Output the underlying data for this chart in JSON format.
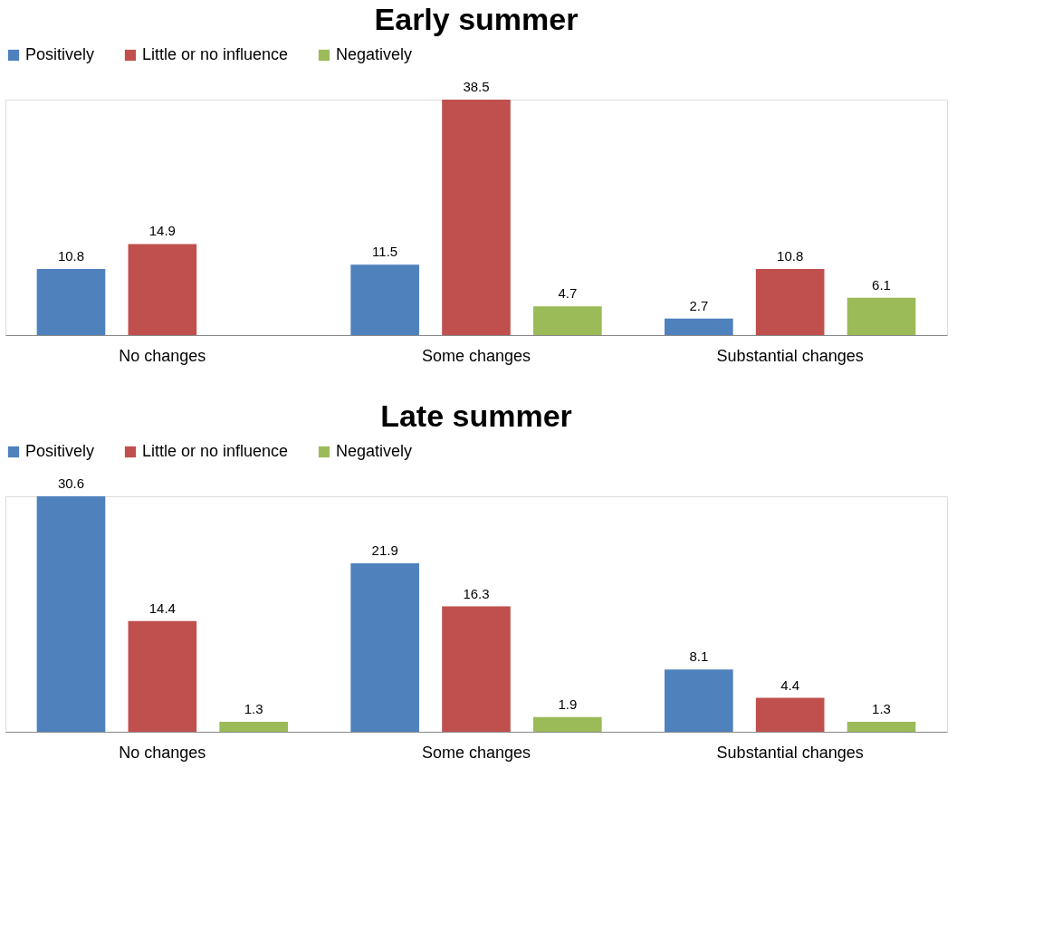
{
  "chart_data": [
    {
      "type": "bar",
      "title": "Early summer",
      "categories": [
        "No changes",
        "Some changes",
        "Substantial changes"
      ],
      "data_labels": true,
      "legend": "top",
      "series": [
        {
          "name": "Positively",
          "color": "#4f81bd",
          "values": [
            10.8,
            11.5,
            2.7
          ]
        },
        {
          "name": "Little or no influence",
          "color": "#c0504d",
          "values": [
            14.9,
            38.5,
            10.8
          ]
        },
        {
          "name": "Negatively",
          "color": "#9bbb59",
          "values": [
            null,
            4.7,
            6.1
          ]
        }
      ]
    },
    {
      "type": "bar",
      "title": "Late summer",
      "categories": [
        "No changes",
        "Some changes",
        "Substantial changes"
      ],
      "data_labels": true,
      "legend": "top",
      "series": [
        {
          "name": "Positively",
          "color": "#4f81bd",
          "values": [
            30.6,
            21.9,
            8.1
          ]
        },
        {
          "name": "Little or no influence",
          "color": "#c0504d",
          "values": [
            14.4,
            16.3,
            4.4
          ]
        },
        {
          "name": "Negatively",
          "color": "#9bbb59",
          "values": [
            1.3,
            1.9,
            1.3
          ]
        }
      ]
    }
  ]
}
